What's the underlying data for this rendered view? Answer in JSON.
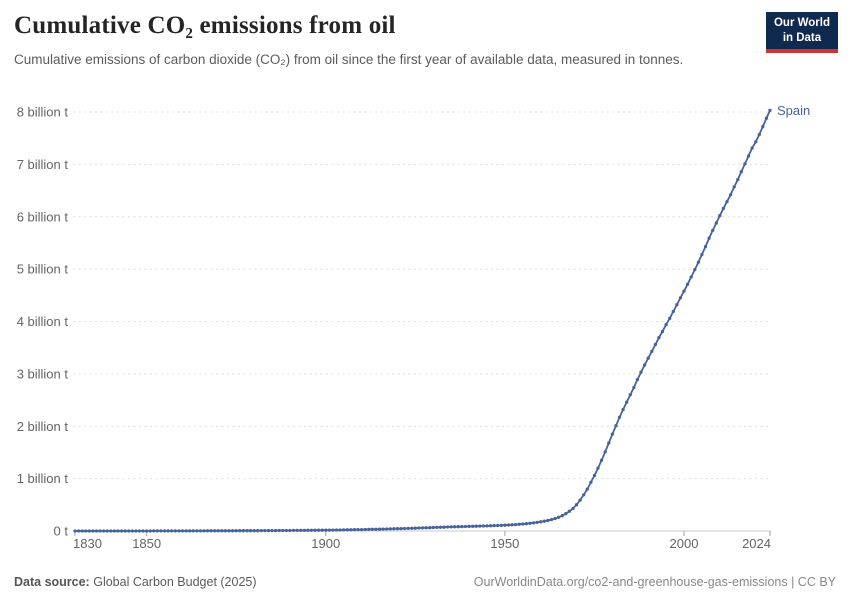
{
  "header": {
    "title": "Cumulative CO₂ emissions from oil",
    "subtitle": "Cumulative emissions of carbon dioxide (CO₂) from oil since the first year of available data, measured in tonnes.",
    "logo": {
      "line1": "Our World",
      "line2": "in Data"
    }
  },
  "footer": {
    "source_label": "Data source:",
    "source_value": "Global Carbon Budget (2025)",
    "rights": "OurWorldinData.org/co2-and-greenhouse-gas-emissions | CC BY"
  },
  "colors": {
    "series": "#46639b",
    "entity_label": "#46639b",
    "grid": "#dcdcdc",
    "axis": "#c8c8c8",
    "tick_mark": "#a3a3a3",
    "tick_text": "#646464",
    "logo_bg": "#10294e",
    "logo_red": "#d0342c"
  },
  "chart_data": {
    "type": "line",
    "title": "Cumulative CO₂ emissions from oil",
    "xlabel": "",
    "ylabel": "",
    "unit": "tonnes",
    "grid": "horizontal dashed",
    "legend_position": "line-end label",
    "xlim": [
      1830,
      2024
    ],
    "ylim": [
      0,
      8.4
    ],
    "x_ticks": [
      {
        "value": 1830,
        "label": "1830"
      },
      {
        "value": 1850,
        "label": "1850"
      },
      {
        "value": 1900,
        "label": "1900"
      },
      {
        "value": 1950,
        "label": "1950"
      },
      {
        "value": 2000,
        "label": "2000"
      },
      {
        "value": 2024,
        "label": "2024"
      }
    ],
    "y_ticks": [
      {
        "value": 0,
        "label": "0 t"
      },
      {
        "value": 1,
        "label": "1 billion t"
      },
      {
        "value": 2,
        "label": "2 billion t"
      },
      {
        "value": 3,
        "label": "3 billion t"
      },
      {
        "value": 4,
        "label": "4 billion t"
      },
      {
        "value": 5,
        "label": "5 billion t"
      },
      {
        "value": 6,
        "label": "6 billion t"
      },
      {
        "value": 7,
        "label": "7 billion t"
      },
      {
        "value": 8,
        "label": "8 billion t"
      }
    ],
    "marker_every_year": true,
    "series": [
      {
        "name": "Spain",
        "color": "#46639b",
        "value_unit": "billion tonnes",
        "points": [
          [
            1830,
            0
          ],
          [
            1840,
            0.0003
          ],
          [
            1850,
            0.0008
          ],
          [
            1860,
            0.0018
          ],
          [
            1870,
            0.0035
          ],
          [
            1880,
            0.006
          ],
          [
            1890,
            0.01
          ],
          [
            1900,
            0.016
          ],
          [
            1905,
            0.021
          ],
          [
            1910,
            0.027
          ],
          [
            1915,
            0.035
          ],
          [
            1920,
            0.044
          ],
          [
            1925,
            0.054
          ],
          [
            1930,
            0.066
          ],
          [
            1935,
            0.078
          ],
          [
            1940,
            0.088
          ],
          [
            1945,
            0.097
          ],
          [
            1950,
            0.11
          ],
          [
            1953,
            0.122
          ],
          [
            1956,
            0.14
          ],
          [
            1958,
            0.155
          ],
          [
            1960,
            0.175
          ],
          [
            1961,
            0.187
          ],
          [
            1962,
            0.201
          ],
          [
            1963,
            0.218
          ],
          [
            1964,
            0.238
          ],
          [
            1965,
            0.262
          ],
          [
            1966,
            0.292
          ],
          [
            1967,
            0.33
          ],
          [
            1968,
            0.376
          ],
          [
            1969,
            0.43
          ],
          [
            1970,
            0.5
          ],
          [
            1971,
            0.59
          ],
          [
            1972,
            0.69
          ],
          [
            1973,
            0.8
          ],
          [
            1974,
            0.93
          ],
          [
            1975,
            1.06
          ],
          [
            1976,
            1.2
          ],
          [
            1977,
            1.35
          ],
          [
            1978,
            1.51
          ],
          [
            1979,
            1.68
          ],
          [
            1980,
            1.85
          ],
          [
            1981,
            2.01
          ],
          [
            1982,
            2.17
          ],
          [
            1983,
            2.32
          ],
          [
            1984,
            2.46
          ],
          [
            1985,
            2.6
          ],
          [
            1986,
            2.74
          ],
          [
            1987,
            2.89
          ],
          [
            1988,
            3.03
          ],
          [
            1989,
            3.17
          ],
          [
            1990,
            3.3
          ],
          [
            1991,
            3.43
          ],
          [
            1992,
            3.56
          ],
          [
            1993,
            3.69
          ],
          [
            1994,
            3.81
          ],
          [
            1995,
            3.94
          ],
          [
            1996,
            4.06
          ],
          [
            1997,
            4.19
          ],
          [
            1998,
            4.32
          ],
          [
            1999,
            4.45
          ],
          [
            2000,
            4.58
          ],
          [
            2001,
            4.71
          ],
          [
            2002,
            4.85
          ],
          [
            2003,
            4.99
          ],
          [
            2004,
            5.13
          ],
          [
            2005,
            5.28
          ],
          [
            2006,
            5.43
          ],
          [
            2007,
            5.59
          ],
          [
            2008,
            5.74
          ],
          [
            2009,
            5.88
          ],
          [
            2010,
            6.02
          ],
          [
            2011,
            6.16
          ],
          [
            2012,
            6.29
          ],
          [
            2013,
            6.42
          ],
          [
            2014,
            6.57
          ],
          [
            2015,
            6.71
          ],
          [
            2016,
            6.86
          ],
          [
            2017,
            7.01
          ],
          [
            2018,
            7.16
          ],
          [
            2019,
            7.31
          ],
          [
            2020,
            7.43
          ],
          [
            2021,
            7.57
          ],
          [
            2022,
            7.72
          ],
          [
            2023,
            7.88
          ],
          [
            2024,
            8.03
          ]
        ]
      }
    ]
  }
}
